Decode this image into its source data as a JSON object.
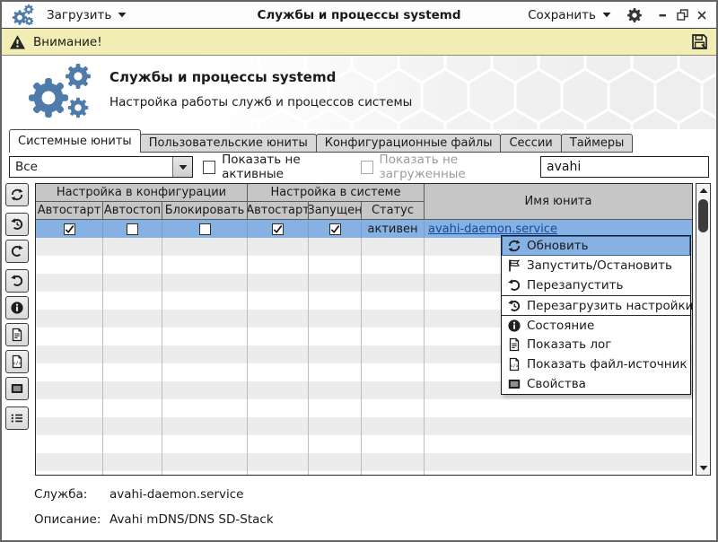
{
  "titlebar": {
    "load_label": "Загрузить",
    "title": "Службы и процессы systemd",
    "save_label": "Сохранить"
  },
  "warning": {
    "text": "Внимание!"
  },
  "hero": {
    "title": "Службы и процессы systemd",
    "subtitle": "Настройка работы служб и процессов системы"
  },
  "tabs": [
    {
      "id": "system-units",
      "label": "Системные юниты",
      "active": true
    },
    {
      "id": "user-units",
      "label": "Пользовательские юниты",
      "active": false
    },
    {
      "id": "config-files",
      "label": "Конфигурационные файлы",
      "active": false
    },
    {
      "id": "sessions",
      "label": "Сессии",
      "active": false
    },
    {
      "id": "timers",
      "label": "Таймеры",
      "active": false
    }
  ],
  "filters": {
    "category_selected": "Все",
    "show_inactive_label": "Показать не активные",
    "show_inactive_checked": false,
    "show_unloaded_label": "Показать не загруженные",
    "show_unloaded_checked": false,
    "show_unloaded_disabled": true,
    "search_value": "avahi"
  },
  "sidebar": {
    "groups": [
      [
        "refresh"
      ],
      [
        "history",
        "redo"
      ],
      [
        "undo",
        "info",
        "log",
        "source-file",
        "properties"
      ],
      [
        "unit-list"
      ]
    ]
  },
  "table": {
    "group_headers": [
      "Настройка в конфигурации",
      "Настройка в системе",
      "Имя юнита"
    ],
    "sub_headers": [
      "Автостарт",
      "Автостоп",
      "Блокировать",
      "Автостарт",
      "Запущен",
      "Статус"
    ],
    "rows": [
      {
        "checks": [
          true,
          false,
          false,
          true,
          true
        ],
        "status": "активен",
        "unit": "avahi-daemon.service",
        "selected": true
      }
    ],
    "empty_rows": 14
  },
  "context_menu": {
    "items": [
      {
        "label": "Обновить",
        "icon": "refresh",
        "highlighted": true
      },
      {
        "label": "Запустить/Остановить",
        "icon": "flag"
      },
      {
        "label": "Перезапустить",
        "icon": "undo"
      },
      {
        "label": "Перезагрузить настройки",
        "icon": "history",
        "group_start": true
      },
      {
        "label": "Состояние",
        "icon": "info",
        "group_start": true
      },
      {
        "label": "Показать лог",
        "icon": "log"
      },
      {
        "label": "Показать файл-источник",
        "icon": "source-file"
      },
      {
        "label": "Свойства",
        "icon": "properties"
      }
    ]
  },
  "footer": {
    "service_label": "Служба:",
    "service_value": "avahi-daemon.service",
    "description_label": "Описание:",
    "description_value": "Avahi mDNS/DNS SD-Stack"
  },
  "colors": {
    "accent_gears": "#4f7bab",
    "selection": "#85b1e3",
    "warning_bg": "#f1edb5",
    "link": "#17499c",
    "header_bg": "#c6c6c6",
    "stripe": "#ececec"
  }
}
